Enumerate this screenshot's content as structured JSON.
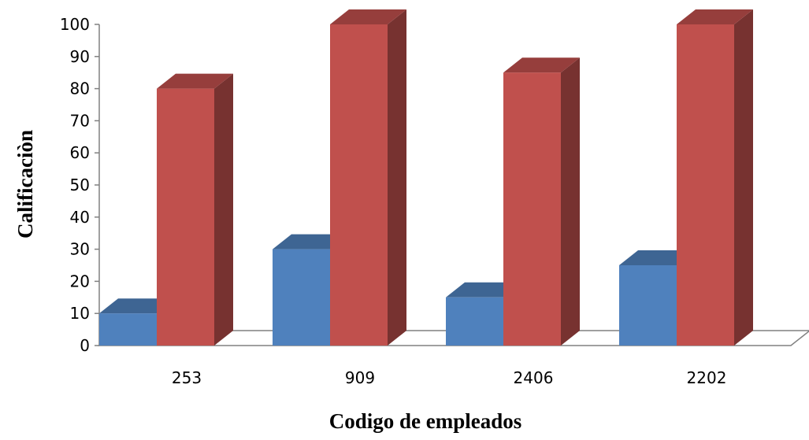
{
  "chart_data": {
    "type": "bar",
    "title": "",
    "xlabel": "Codigo de empleados",
    "ylabel": "Calificaciòn",
    "categories": [
      "253",
      "909",
      "2406",
      "2202"
    ],
    "ylim": [
      0,
      100
    ],
    "yticks": [
      0,
      10,
      20,
      30,
      40,
      50,
      60,
      70,
      80,
      90,
      100
    ],
    "grid": false,
    "legend": "none",
    "style": "3d-column",
    "series": [
      {
        "values": [
          10,
          30,
          15,
          25
        ],
        "color": "#4F81BD"
      },
      {
        "values": [
          80,
          100,
          85,
          100
        ],
        "color": "#C0504D"
      }
    ]
  }
}
